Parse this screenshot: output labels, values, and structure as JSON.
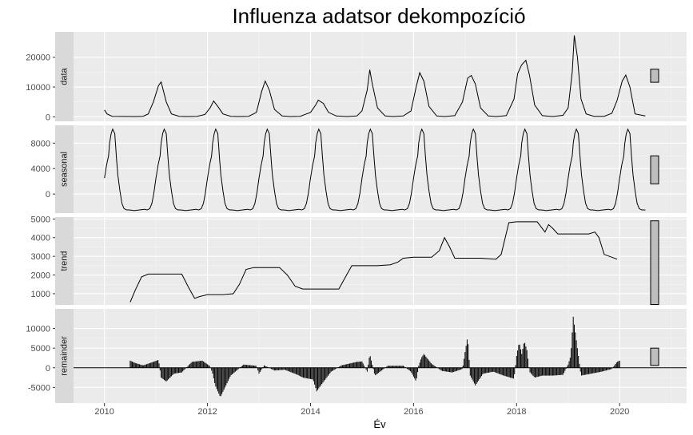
{
  "chart_data": {
    "type": "line",
    "title": "Influenza adatsor dekompozíció",
    "xlabel": "Év",
    "x_ticks": [
      2010,
      2012,
      2014,
      2016,
      2018,
      2020
    ],
    "xlim": [
      2009.4,
      2021.3
    ],
    "panels": [
      {
        "name": "data",
        "ylim": [
          -1500,
          28500
        ],
        "y_ticks": [
          0,
          10000,
          20000
        ],
        "scale_bar_height": 4400,
        "x": [
          2010.0,
          2010.05,
          2010.15,
          2010.6,
          2010.75,
          2010.85,
          2010.95,
          2011.05,
          2011.1,
          2011.2,
          2011.3,
          2011.45,
          2011.6,
          2011.8,
          2011.95,
          2012.05,
          2012.12,
          2012.2,
          2012.3,
          2012.45,
          2012.6,
          2012.8,
          2012.95,
          2013.05,
          2013.12,
          2013.2,
          2013.3,
          2013.45,
          2013.6,
          2013.8,
          2014.0,
          2014.1,
          2014.15,
          2014.25,
          2014.35,
          2014.5,
          2014.7,
          2014.9,
          2015.0,
          2015.1,
          2015.15,
          2015.2,
          2015.3,
          2015.45,
          2015.6,
          2015.8,
          2015.95,
          2016.05,
          2016.12,
          2016.2,
          2016.3,
          2016.45,
          2016.6,
          2016.8,
          2016.95,
          2017.05,
          2017.12,
          2017.2,
          2017.3,
          2017.45,
          2017.6,
          2017.8,
          2017.95,
          2018.02,
          2018.1,
          2018.18,
          2018.25,
          2018.35,
          2018.5,
          2018.7,
          2018.9,
          2019.0,
          2019.08,
          2019.12,
          2019.18,
          2019.25,
          2019.35,
          2019.5,
          2019.7,
          2019.85,
          2019.95,
          2020.05,
          2020.12,
          2020.2,
          2020.3,
          2020.5
        ],
        "y": [
          2300,
          1000,
          200,
          100,
          200,
          1000,
          5000,
          10500,
          11700,
          5000,
          1000,
          200,
          100,
          200,
          800,
          3000,
          5300,
          3500,
          1000,
          200,
          100,
          200,
          1500,
          8500,
          12000,
          9000,
          2500,
          300,
          100,
          200,
          1500,
          4000,
          5600,
          4500,
          1500,
          300,
          100,
          300,
          2000,
          9000,
          15800,
          11000,
          3000,
          300,
          100,
          300,
          2000,
          10000,
          14800,
          12000,
          3500,
          300,
          100,
          400,
          5000,
          13000,
          13900,
          11000,
          3000,
          300,
          100,
          400,
          6000,
          14500,
          17500,
          19000,
          14000,
          4000,
          400,
          100,
          500,
          3000,
          15000,
          27300,
          20000,
          6000,
          1000,
          200,
          200,
          1200,
          5500,
          12000,
          14000,
          10000,
          1000,
          300
        ]
      },
      {
        "name": "seasonal",
        "ylim": [
          -3000,
          10800
        ],
        "y_ticks": [
          0,
          4000,
          8000
        ],
        "scale_bar_height": 4400,
        "seasonal_shape": {
          "phase": [
            0.0,
            0.02,
            0.05,
            0.08,
            0.12,
            0.15,
            0.18,
            0.22,
            0.26,
            0.3,
            0.35,
            0.4,
            0.5,
            0.6,
            0.7,
            0.75,
            0.8,
            0.84,
            0.88,
            0.92,
            0.96,
            1.0
          ],
          "value": [
            6000,
            8000,
            9500,
            10200,
            9500,
            6000,
            3000,
            500,
            -1500,
            -2300,
            -2500,
            -2500,
            -2600,
            -2500,
            -2400,
            -2500,
            -2300,
            -1500,
            200,
            2500,
            4500,
            6000
          ]
        },
        "x_range": [
          2010.0,
          2020.5
        ]
      },
      {
        "name": "trend",
        "ylim": [
          400,
          5100
        ],
        "y_ticks": [
          1000,
          2000,
          3000,
          4000,
          5000
        ],
        "scale_bar_height": 4400,
        "x": [
          2010.5,
          2010.6,
          2010.72,
          2010.85,
          2011.0,
          2011.3,
          2011.5,
          2011.62,
          2011.75,
          2011.85,
          2012.0,
          2012.3,
          2012.5,
          2012.62,
          2012.75,
          2012.9,
          2013.0,
          2013.4,
          2013.55,
          2013.7,
          2013.85,
          2014.0,
          2014.3,
          2014.55,
          2014.68,
          2014.8,
          2015.0,
          2015.3,
          2015.55,
          2015.7,
          2015.8,
          2016.0,
          2016.35,
          2016.5,
          2016.6,
          2016.7,
          2016.8,
          2017.0,
          2017.3,
          2017.6,
          2017.7,
          2017.85,
          2018.0,
          2018.4,
          2018.55,
          2018.62,
          2018.7,
          2018.8,
          2019.0,
          2019.4,
          2019.52,
          2019.6,
          2019.7,
          2019.85,
          2019.95
        ],
        "y": [
          550,
          1200,
          1900,
          2050,
          2050,
          2050,
          2050,
          1400,
          750,
          850,
          950,
          950,
          1000,
          1500,
          2300,
          2400,
          2400,
          2400,
          2000,
          1400,
          1250,
          1250,
          1250,
          1250,
          1900,
          2500,
          2500,
          2500,
          2550,
          2700,
          2900,
          2950,
          2950,
          3300,
          4000,
          3500,
          2900,
          2900,
          2900,
          2850,
          3100,
          4800,
          4850,
          4850,
          4300,
          4700,
          4500,
          4200,
          4200,
          4200,
          4300,
          4000,
          3100,
          2950,
          2850
        ]
      },
      {
        "name": "remainder",
        "ylim": [
          -9000,
          15000
        ],
        "y_ticks": [
          -5000,
          0,
          5000,
          10000
        ],
        "scale_bar_height": 4400,
        "x": [
          2010.5,
          2010.6,
          2010.75,
          2010.95,
          2011.05,
          2011.1,
          2011.2,
          2011.35,
          2011.5,
          2011.7,
          2011.9,
          2012.05,
          2012.1,
          2012.15,
          2012.25,
          2012.45,
          2012.7,
          2012.95,
          2013.0,
          2013.1,
          2013.3,
          2013.5,
          2013.75,
          2013.85,
          2014.05,
          2014.12,
          2014.2,
          2014.4,
          2014.6,
          2014.9,
          2015.0,
          2015.1,
          2015.15,
          2015.25,
          2015.5,
          2015.8,
          2015.95,
          2016.05,
          2016.1,
          2016.15,
          2016.2,
          2016.35,
          2016.55,
          2016.75,
          2016.95,
          2017.0,
          2017.05,
          2017.1,
          2017.2,
          2017.35,
          2017.55,
          2017.75,
          2017.95,
          2018.0,
          2018.05,
          2018.1,
          2018.15,
          2018.2,
          2018.25,
          2018.35,
          2018.5,
          2018.7,
          2018.9,
          2019.0,
          2019.05,
          2019.1,
          2019.15,
          2019.25,
          2019.45,
          2019.65,
          2019.85,
          2019.95,
          2020.0
        ],
        "y": [
          1800,
          1200,
          600,
          1500,
          2000,
          -2500,
          -3500,
          -1500,
          -1200,
          1500,
          1800,
          400,
          -1500,
          -4500,
          -7500,
          -2000,
          800,
          500,
          -1500,
          600,
          -700,
          -500,
          -1800,
          -2500,
          -3000,
          -6000,
          -4500,
          -1000,
          600,
          1500,
          1600,
          -1000,
          3500,
          -2000,
          500,
          500,
          -1000,
          -3500,
          500,
          2500,
          3500,
          1000,
          -800,
          -1200,
          -300,
          4000,
          8000,
          -2000,
          -4500,
          -1500,
          -1000,
          -2000,
          -2800,
          3000,
          6500,
          3500,
          6800,
          4500,
          -1000,
          -2500,
          -2000,
          -2000,
          -1800,
          800,
          3000,
          13000,
          8000,
          -2000,
          -1500,
          -1000,
          -300,
          1500,
          1800
        ]
      }
    ]
  }
}
